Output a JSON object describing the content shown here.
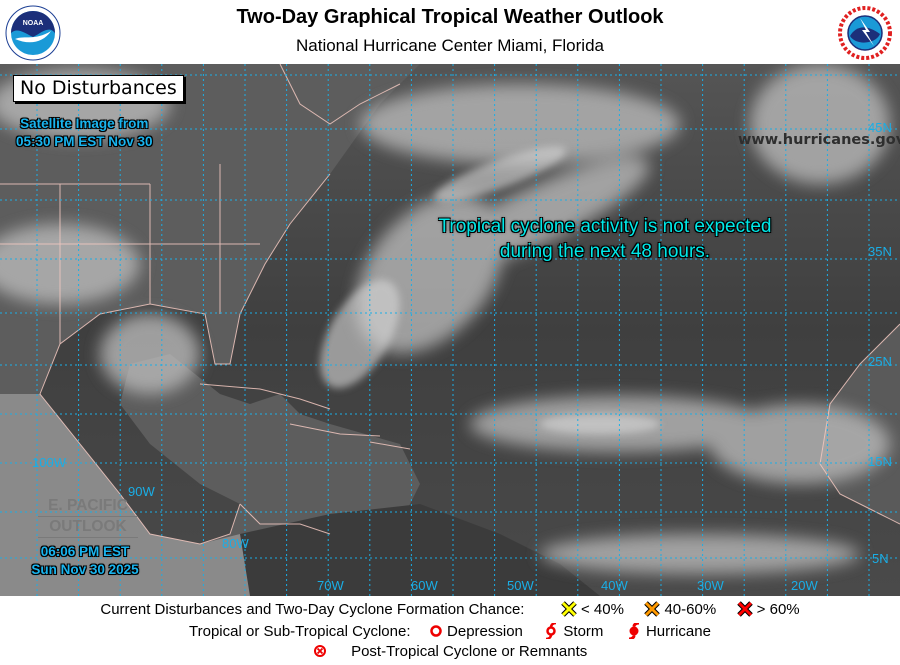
{
  "header": {
    "title": "Two-Day Graphical Tropical Weather Outlook",
    "subtitle": "National Hurricane Center  Miami, Florida",
    "left_logo": "NOAA",
    "right_logo": "NATIONAL WEATHER SERVICE"
  },
  "map": {
    "status": "No Disturbances",
    "satellite_time_line1": "Satellite Image from",
    "satellite_time_line2": "05:30 PM EST Nov 30",
    "website": "www.hurricanes.gov",
    "message_line1": "Tropical cyclone activity is not expected",
    "message_line2": "during the next 48 hours.",
    "epac_link_line1": "E. PACIFIC",
    "epac_link_line2": "OUTLOOK",
    "epac_time_line1": "06:06 PM EST",
    "epac_time_line2": "Sun Nov 30 2025",
    "lat_labels": [
      "45N",
      "35N",
      "25N",
      "15N",
      "5N"
    ],
    "lon_labels": [
      "100W",
      "90W",
      "80W",
      "70W",
      "60W",
      "50W",
      "40W",
      "30W",
      "20W"
    ],
    "grid_color": "#1aaee6",
    "label_color": "#1aaee6"
  },
  "legend": {
    "row1_label": "Current Disturbances and Two-Day Cyclone Formation Chance:",
    "low": "< 40%",
    "medium": "40-60%",
    "high": "> 60%",
    "low_color": "#ffff00",
    "medium_color": "#ff9900",
    "high_color": "#ff0000",
    "row2_label": "Tropical or Sub-Tropical Cyclone:",
    "depression": "Depression",
    "storm": "Storm",
    "hurricane": "Hurricane",
    "post_tropical": "Post-Tropical Cyclone or Remnants"
  }
}
